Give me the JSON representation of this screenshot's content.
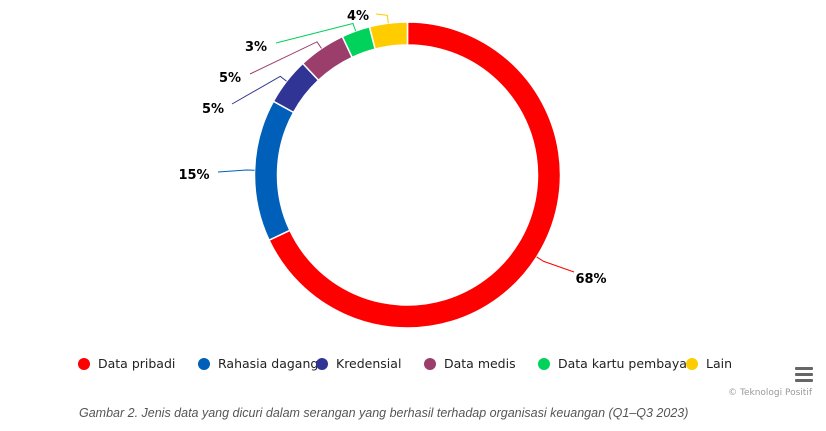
{
  "chart_data": {
    "type": "pie",
    "variant": "donut",
    "title": "",
    "categories": [
      "Data pribadi",
      "Rahasia dagang",
      "Kredensial",
      "Data medis",
      "Data kartu pembayaran",
      "Lain"
    ],
    "values": [
      68,
      15,
      5,
      5,
      3,
      4
    ],
    "unit": "%",
    "colors": [
      "#ff0000",
      "#0060b9",
      "#303595",
      "#9b3e6c",
      "#00d25b",
      "#ffcc00"
    ],
    "data_labels": [
      "68%",
      "15%",
      "5%",
      "5%",
      "3%",
      "4%"
    ],
    "legend_position": "bottom",
    "caption": "Gambar 2. Jenis data yang dicuri dalam serangan yang berhasil terhadap organisasi keuangan (Q1–Q3 2023)"
  },
  "legend": {
    "items": [
      {
        "label": "Data pribadi",
        "color": "#ff0000"
      },
      {
        "label": "Rahasia dagang",
        "color": "#0060b9"
      },
      {
        "label": "Kredensial",
        "color": "#303595"
      },
      {
        "label": "Data medis",
        "color": "#9b3e6c"
      },
      {
        "label": "Data kartu pembayaran",
        "color": "#00d25b"
      },
      {
        "label": "Lain",
        "color": "#ffcc00"
      }
    ]
  },
  "credits": "© Teknologi Positif",
  "menu_icon": "hamburger-menu-icon",
  "caption": "Gambar 2. Jenis data yang dicuri dalam serangan yang berhasil terhadap organisasi keuangan (Q1–Q3 2023)"
}
